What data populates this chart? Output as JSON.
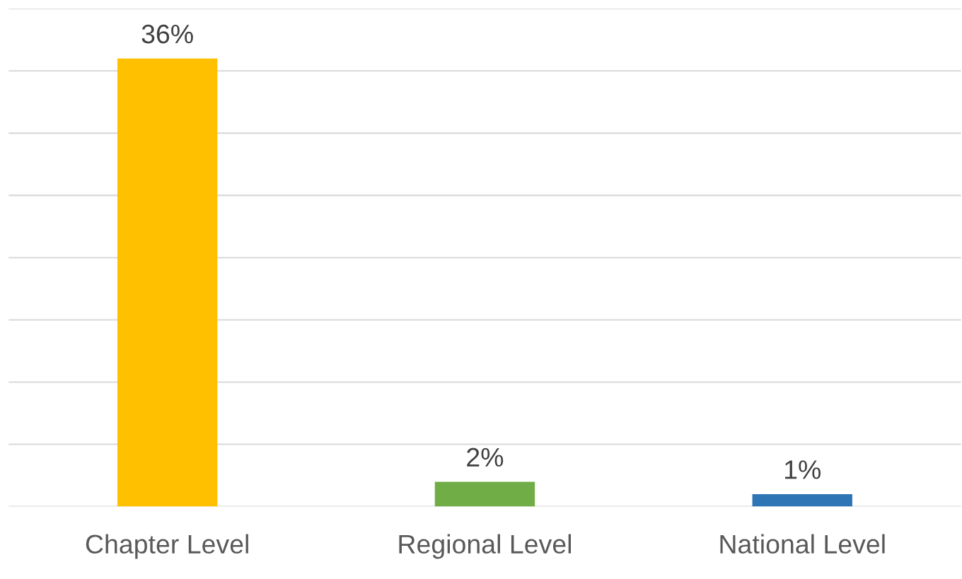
{
  "chart_data": {
    "type": "bar",
    "categories": [
      "Chapter Level",
      "Regional Level",
      "National Level"
    ],
    "values": [
      36,
      2,
      1
    ],
    "colors": [
      "#ffc000",
      "#70ad47",
      "#2e75b6"
    ],
    "value_labels": [
      "36%",
      "2%",
      "1%"
    ],
    "ylim": [
      0,
      40
    ],
    "yticks": [
      {
        "value": 0,
        "label": null
      },
      {
        "value": 5,
        "label": null
      },
      {
        "value": 10,
        "label": null
      },
      {
        "value": 15,
        "label": null
      },
      {
        "value": 20,
        "label": null
      },
      {
        "value": 25,
        "label": null
      },
      {
        "value": 30,
        "label": null
      },
      {
        "value": 35,
        "label": null
      },
      {
        "value": 40,
        "label": null
      }
    ],
    "tick_labels": "x",
    "grid": "y",
    "legend": false
  }
}
